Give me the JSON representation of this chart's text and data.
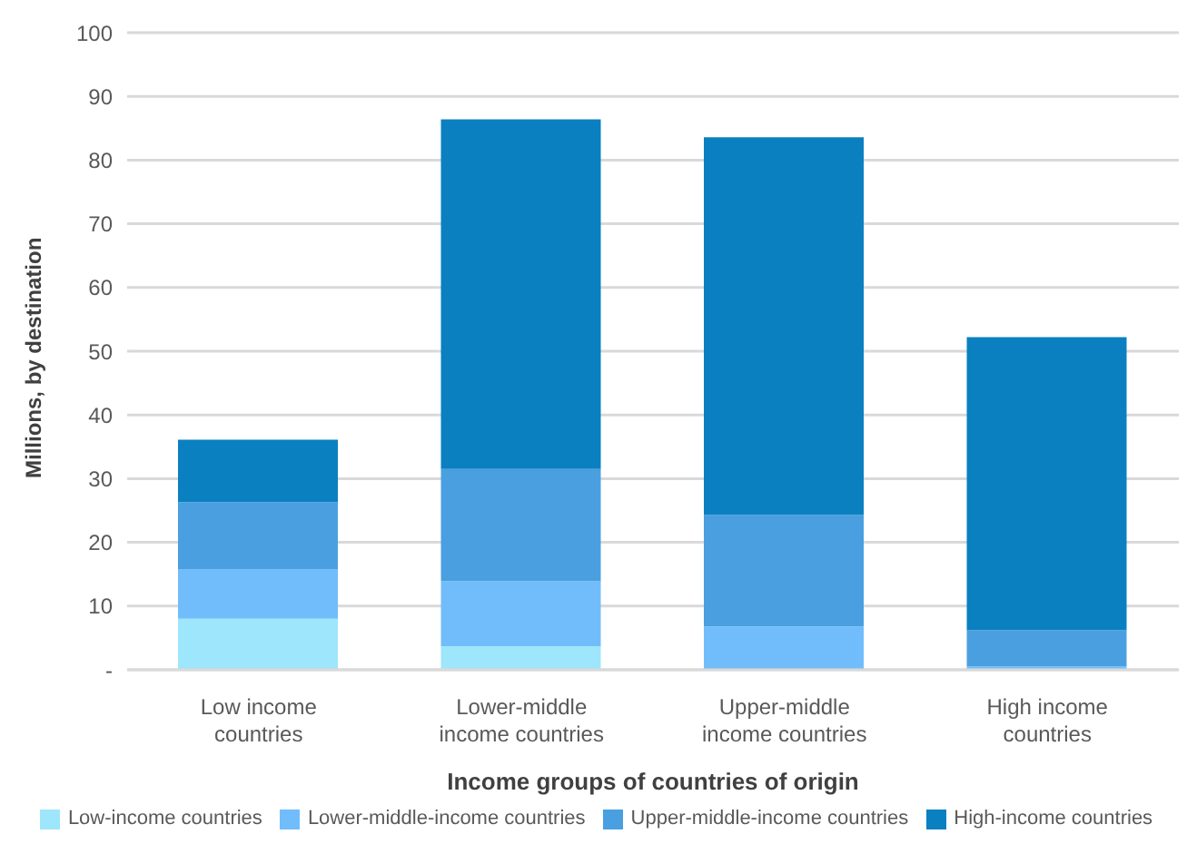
{
  "chart_data": {
    "type": "bar",
    "stacked": true,
    "xlabel": "Income groups of countries of origin",
    "ylabel": "Millions, by destination",
    "categories": [
      "Low income countries",
      "Lower-middle income countries",
      "Upper-middle income countries",
      "High income countries"
    ],
    "series": [
      {
        "name": "Low-income countries",
        "color": "#9de6fb",
        "values": [
          8.0,
          3.7,
          null,
          null
        ]
      },
      {
        "name": "Lower-middle-income countries",
        "color": "#71bdfb",
        "values": [
          7.8,
          10.2,
          6.8,
          0.5
        ]
      },
      {
        "name": "Upper-middle-income countries",
        "color": "#4a9fe0",
        "values": [
          10.5,
          17.6,
          17.5,
          5.7
        ]
      },
      {
        "name": "High-income countries",
        "color": "#0a80c0",
        "values": [
          9.8,
          54.9,
          59.3,
          46.0
        ]
      }
    ],
    "ylim": [
      0,
      100
    ],
    "yticks": [
      {
        "value": 0,
        "label": "-"
      },
      10,
      20,
      30,
      40,
      50,
      60,
      70,
      80,
      90,
      100
    ],
    "grid": "y",
    "legend": "bottom"
  }
}
